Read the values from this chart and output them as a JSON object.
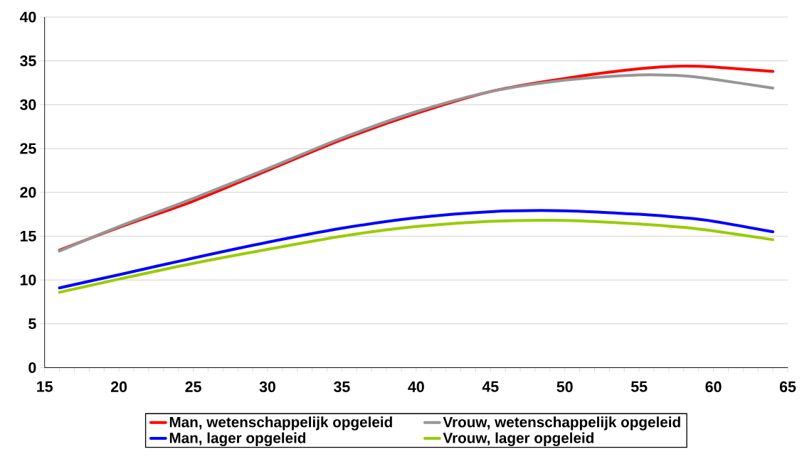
{
  "chart_data": {
    "type": "line",
    "xlim": [
      15,
      65
    ],
    "xticks": [
      15,
      20,
      25,
      30,
      35,
      40,
      45,
      50,
      55,
      60,
      65
    ],
    "ylim": [
      0,
      40
    ],
    "yticks": [
      0,
      5,
      10,
      15,
      20,
      25,
      30,
      35,
      40
    ],
    "grid": "y",
    "legend": "bottom",
    "x": [
      16,
      20,
      25,
      30,
      35,
      40,
      45,
      50,
      55,
      58,
      60,
      64
    ],
    "series": [
      {
        "name": "Man, wetenschappelijk opgeleid",
        "color": "#ff0000",
        "values": [
          13.4,
          16.0,
          19.0,
          22.5,
          26.0,
          29.0,
          31.5,
          33.0,
          34.1,
          34.4,
          34.3,
          33.8
        ]
      },
      {
        "name": "Vrouw, wetenschappelijk opgeleid",
        "color": "#969696",
        "values": [
          13.3,
          16.1,
          19.3,
          22.7,
          26.2,
          29.2,
          31.5,
          32.8,
          33.4,
          33.3,
          32.9,
          31.9
        ]
      },
      {
        "name": "Man, lager opgeleid",
        "color": "#0000ff",
        "values": [
          9.1,
          10.6,
          12.5,
          14.3,
          15.9,
          17.1,
          17.8,
          17.9,
          17.5,
          17.1,
          16.7,
          15.5
        ]
      },
      {
        "name": "Vrouw, lager opgeleid",
        "color": "#99cc00",
        "values": [
          8.6,
          10.1,
          11.9,
          13.5,
          15.0,
          16.1,
          16.7,
          16.8,
          16.4,
          16.0,
          15.6,
          14.6
        ]
      }
    ]
  }
}
